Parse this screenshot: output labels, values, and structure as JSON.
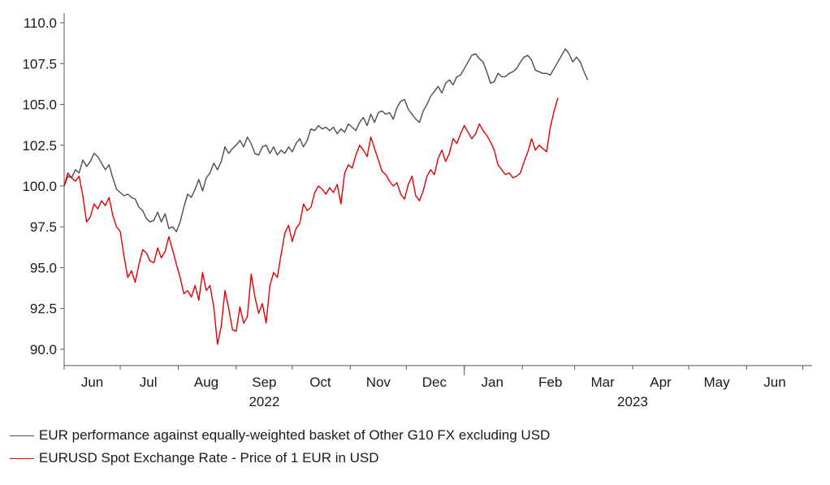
{
  "chart_data": {
    "type": "line",
    "title": "",
    "xlabel": "",
    "ylabel": "",
    "ylim": [
      89,
      110.6
    ],
    "grid": false,
    "legend_position": "bottom-left",
    "y_ticks": [
      "110.0",
      "107.5",
      "105.0",
      "102.5",
      "100.0",
      "97.5",
      "95.0",
      "92.5",
      "90.0"
    ],
    "y_tick_values": [
      110,
      107.5,
      105,
      102.5,
      100,
      97.5,
      95,
      92.5,
      90
    ],
    "x_range_days": [
      0,
      400
    ],
    "month_labels": [
      {
        "label": "Jun",
        "day": 15
      },
      {
        "label": "Jul",
        "day": 45
      },
      {
        "label": "Aug",
        "day": 76
      },
      {
        "label": "Sep",
        "day": 107
      },
      {
        "label": "Oct",
        "day": 137
      },
      {
        "label": "Nov",
        "day": 168
      },
      {
        "label": "Dec",
        "day": 198
      },
      {
        "label": "Jan",
        "day": 229
      },
      {
        "label": "Feb",
        "day": 260
      },
      {
        "label": "Mar",
        "day": 288
      },
      {
        "label": "Apr",
        "day": 319
      },
      {
        "label": "May",
        "day": 349
      },
      {
        "label": "Jun",
        "day": 380
      }
    ],
    "month_boundaries": [
      0,
      30,
      61,
      92,
      122,
      153,
      183,
      214,
      245,
      273,
      304,
      334,
      365,
      395
    ],
    "year_labels": [
      {
        "label": "2022",
        "day": 107
      },
      {
        "label": "2023",
        "day": 304
      }
    ],
    "year_boundary_day": 214,
    "series": [
      {
        "name": "EUR performance against equally-weighted basket of Other G10 FX excluding USD",
        "color": "#4d4d4d",
        "points": [
          [
            0,
            100.0
          ],
          [
            2,
            100.6
          ],
          [
            4,
            100.5
          ],
          [
            6,
            101.0
          ],
          [
            8,
            100.8
          ],
          [
            10,
            101.6
          ],
          [
            12,
            101.2
          ],
          [
            14,
            101.5
          ],
          [
            16,
            102.0
          ],
          [
            18,
            101.8
          ],
          [
            20,
            101.4
          ],
          [
            22,
            101.0
          ],
          [
            24,
            101.3
          ],
          [
            26,
            100.5
          ],
          [
            28,
            99.8
          ],
          [
            30,
            99.6
          ],
          [
            32,
            99.4
          ],
          [
            34,
            99.5
          ],
          [
            36,
            99.3
          ],
          [
            38,
            99.2
          ],
          [
            40,
            98.7
          ],
          [
            42,
            98.5
          ],
          [
            44,
            98.0
          ],
          [
            46,
            97.8
          ],
          [
            48,
            97.9
          ],
          [
            50,
            98.4
          ],
          [
            52,
            97.8
          ],
          [
            54,
            98.3
          ],
          [
            56,
            97.4
          ],
          [
            58,
            97.5
          ],
          [
            60,
            97.2
          ],
          [
            62,
            97.8
          ],
          [
            64,
            98.7
          ],
          [
            66,
            99.5
          ],
          [
            68,
            99.3
          ],
          [
            70,
            99.8
          ],
          [
            72,
            100.4
          ],
          [
            74,
            99.7
          ],
          [
            76,
            100.5
          ],
          [
            78,
            100.8
          ],
          [
            80,
            101.4
          ],
          [
            82,
            101.0
          ],
          [
            84,
            101.5
          ],
          [
            86,
            102.4
          ],
          [
            88,
            102.0
          ],
          [
            90,
            102.3
          ],
          [
            92,
            102.5
          ],
          [
            94,
            102.8
          ],
          [
            96,
            102.4
          ],
          [
            98,
            103.0
          ],
          [
            100,
            102.6
          ],
          [
            102,
            102.0
          ],
          [
            104,
            101.9
          ],
          [
            106,
            102.4
          ],
          [
            108,
            102.5
          ],
          [
            110,
            102.0
          ],
          [
            112,
            102.4
          ],
          [
            114,
            101.9
          ],
          [
            116,
            102.2
          ],
          [
            118,
            102.0
          ],
          [
            120,
            102.4
          ],
          [
            122,
            102.1
          ],
          [
            124,
            102.6
          ],
          [
            126,
            102.9
          ],
          [
            128,
            102.4
          ],
          [
            130,
            102.8
          ],
          [
            132,
            103.5
          ],
          [
            134,
            103.4
          ],
          [
            136,
            103.7
          ],
          [
            138,
            103.5
          ],
          [
            140,
            103.6
          ],
          [
            142,
            103.4
          ],
          [
            144,
            103.6
          ],
          [
            146,
            103.2
          ],
          [
            148,
            103.5
          ],
          [
            150,
            103.3
          ],
          [
            152,
            103.8
          ],
          [
            154,
            103.6
          ],
          [
            156,
            103.4
          ],
          [
            158,
            103.9
          ],
          [
            160,
            104.2
          ],
          [
            162,
            103.7
          ],
          [
            164,
            104.4
          ],
          [
            166,
            103.9
          ],
          [
            168,
            104.5
          ],
          [
            170,
            104.6
          ],
          [
            172,
            104.4
          ],
          [
            174,
            104.5
          ],
          [
            176,
            104.1
          ],
          [
            178,
            104.8
          ],
          [
            180,
            105.2
          ],
          [
            182,
            105.3
          ],
          [
            184,
            104.7
          ],
          [
            186,
            104.4
          ],
          [
            188,
            104.1
          ],
          [
            190,
            103.9
          ],
          [
            192,
            104.6
          ],
          [
            194,
            105.0
          ],
          [
            196,
            105.5
          ],
          [
            198,
            105.8
          ],
          [
            200,
            106.1
          ],
          [
            202,
            105.7
          ],
          [
            204,
            106.3
          ],
          [
            206,
            106.5
          ],
          [
            208,
            106.2
          ],
          [
            210,
            106.7
          ],
          [
            212,
            106.8
          ],
          [
            214,
            107.2
          ],
          [
            216,
            107.6
          ],
          [
            218,
            108.0
          ],
          [
            220,
            108.1
          ],
          [
            222,
            107.8
          ],
          [
            224,
            107.6
          ],
          [
            226,
            107.0
          ],
          [
            228,
            106.3
          ],
          [
            230,
            106.4
          ],
          [
            232,
            106.9
          ],
          [
            234,
            106.7
          ],
          [
            236,
            106.7
          ],
          [
            238,
            106.9
          ],
          [
            240,
            107.0
          ],
          [
            242,
            107.2
          ],
          [
            244,
            107.6
          ],
          [
            246,
            107.9
          ],
          [
            248,
            108.0
          ],
          [
            250,
            107.7
          ],
          [
            252,
            107.1
          ],
          [
            254,
            107.0
          ],
          [
            256,
            106.9
          ],
          [
            258,
            106.9
          ],
          [
            260,
            106.8
          ],
          [
            262,
            107.2
          ],
          [
            264,
            107.6
          ],
          [
            266,
            108.0
          ],
          [
            268,
            108.4
          ],
          [
            270,
            108.1
          ],
          [
            272,
            107.6
          ],
          [
            274,
            107.9
          ],
          [
            276,
            107.6
          ],
          [
            278,
            107.0
          ],
          [
            280,
            106.5
          ]
        ]
      },
      {
        "name": "EURUSD Spot Exchange Rate - Price of 1 EUR in USD",
        "color": "#e00000",
        "points": [
          [
            0,
            100.0
          ],
          [
            2,
            100.8
          ],
          [
            4,
            100.5
          ],
          [
            6,
            100.3
          ],
          [
            8,
            100.6
          ],
          [
            10,
            99.4
          ],
          [
            12,
            97.8
          ],
          [
            14,
            98.1
          ],
          [
            16,
            98.9
          ],
          [
            18,
            98.6
          ],
          [
            20,
            99.1
          ],
          [
            22,
            98.8
          ],
          [
            24,
            99.3
          ],
          [
            26,
            98.2
          ],
          [
            28,
            97.5
          ],
          [
            30,
            97.2
          ],
          [
            32,
            95.7
          ],
          [
            34,
            94.4
          ],
          [
            36,
            94.8
          ],
          [
            38,
            94.1
          ],
          [
            40,
            95.2
          ],
          [
            42,
            96.1
          ],
          [
            44,
            95.9
          ],
          [
            46,
            95.4
          ],
          [
            48,
            95.3
          ],
          [
            50,
            96.2
          ],
          [
            52,
            95.6
          ],
          [
            54,
            96.0
          ],
          [
            56,
            96.9
          ],
          [
            58,
            96.1
          ],
          [
            60,
            95.2
          ],
          [
            62,
            94.4
          ],
          [
            64,
            93.4
          ],
          [
            66,
            93.6
          ],
          [
            68,
            93.2
          ],
          [
            70,
            93.9
          ],
          [
            72,
            93.0
          ],
          [
            74,
            94.7
          ],
          [
            76,
            93.6
          ],
          [
            78,
            93.9
          ],
          [
            80,
            92.6
          ],
          [
            82,
            90.3
          ],
          [
            84,
            91.4
          ],
          [
            86,
            93.6
          ],
          [
            88,
            92.5
          ],
          [
            90,
            91.2
          ],
          [
            92,
            91.1
          ],
          [
            94,
            92.6
          ],
          [
            96,
            91.6
          ],
          [
            98,
            92.0
          ],
          [
            100,
            94.6
          ],
          [
            102,
            93.2
          ],
          [
            104,
            92.2
          ],
          [
            106,
            92.8
          ],
          [
            108,
            91.6
          ],
          [
            110,
            93.9
          ],
          [
            112,
            94.7
          ],
          [
            114,
            94.4
          ],
          [
            116,
            95.8
          ],
          [
            118,
            97.1
          ],
          [
            120,
            97.6
          ],
          [
            122,
            96.6
          ],
          [
            124,
            97.4
          ],
          [
            126,
            97.7
          ],
          [
            128,
            98.9
          ],
          [
            130,
            98.5
          ],
          [
            132,
            98.7
          ],
          [
            134,
            99.6
          ],
          [
            136,
            100.0
          ],
          [
            138,
            99.8
          ],
          [
            140,
            99.5
          ],
          [
            142,
            99.9
          ],
          [
            144,
            99.6
          ],
          [
            146,
            100.1
          ],
          [
            148,
            98.9
          ],
          [
            150,
            100.8
          ],
          [
            152,
            101.3
          ],
          [
            154,
            101.1
          ],
          [
            156,
            101.9
          ],
          [
            158,
            102.5
          ],
          [
            160,
            102.2
          ],
          [
            162,
            101.8
          ],
          [
            164,
            103.0
          ],
          [
            166,
            102.3
          ],
          [
            168,
            101.6
          ],
          [
            170,
            100.9
          ],
          [
            172,
            100.7
          ],
          [
            174,
            100.3
          ],
          [
            176,
            100.0
          ],
          [
            178,
            100.2
          ],
          [
            180,
            99.5
          ],
          [
            182,
            99.2
          ],
          [
            184,
            100.1
          ],
          [
            186,
            100.6
          ],
          [
            188,
            99.4
          ],
          [
            190,
            99.1
          ],
          [
            192,
            99.7
          ],
          [
            194,
            100.6
          ],
          [
            196,
            101.0
          ],
          [
            198,
            100.7
          ],
          [
            200,
            101.7
          ],
          [
            202,
            102.2
          ],
          [
            204,
            101.5
          ],
          [
            206,
            102.0
          ],
          [
            208,
            102.9
          ],
          [
            210,
            102.6
          ],
          [
            212,
            103.2
          ],
          [
            214,
            103.7
          ],
          [
            216,
            103.3
          ],
          [
            218,
            102.9
          ],
          [
            220,
            103.2
          ],
          [
            222,
            103.8
          ],
          [
            224,
            103.4
          ],
          [
            226,
            103.1
          ],
          [
            228,
            102.7
          ],
          [
            230,
            102.2
          ],
          [
            232,
            101.3
          ],
          [
            234,
            101.0
          ],
          [
            236,
            100.7
          ],
          [
            238,
            100.8
          ],
          [
            240,
            100.5
          ],
          [
            242,
            100.6
          ],
          [
            244,
            100.8
          ],
          [
            246,
            101.5
          ],
          [
            248,
            102.1
          ],
          [
            250,
            102.9
          ],
          [
            252,
            102.2
          ],
          [
            254,
            102.5
          ],
          [
            256,
            102.3
          ],
          [
            258,
            102.1
          ],
          [
            260,
            103.6
          ],
          [
            262,
            104.6
          ],
          [
            264,
            105.4
          ]
        ]
      }
    ]
  }
}
